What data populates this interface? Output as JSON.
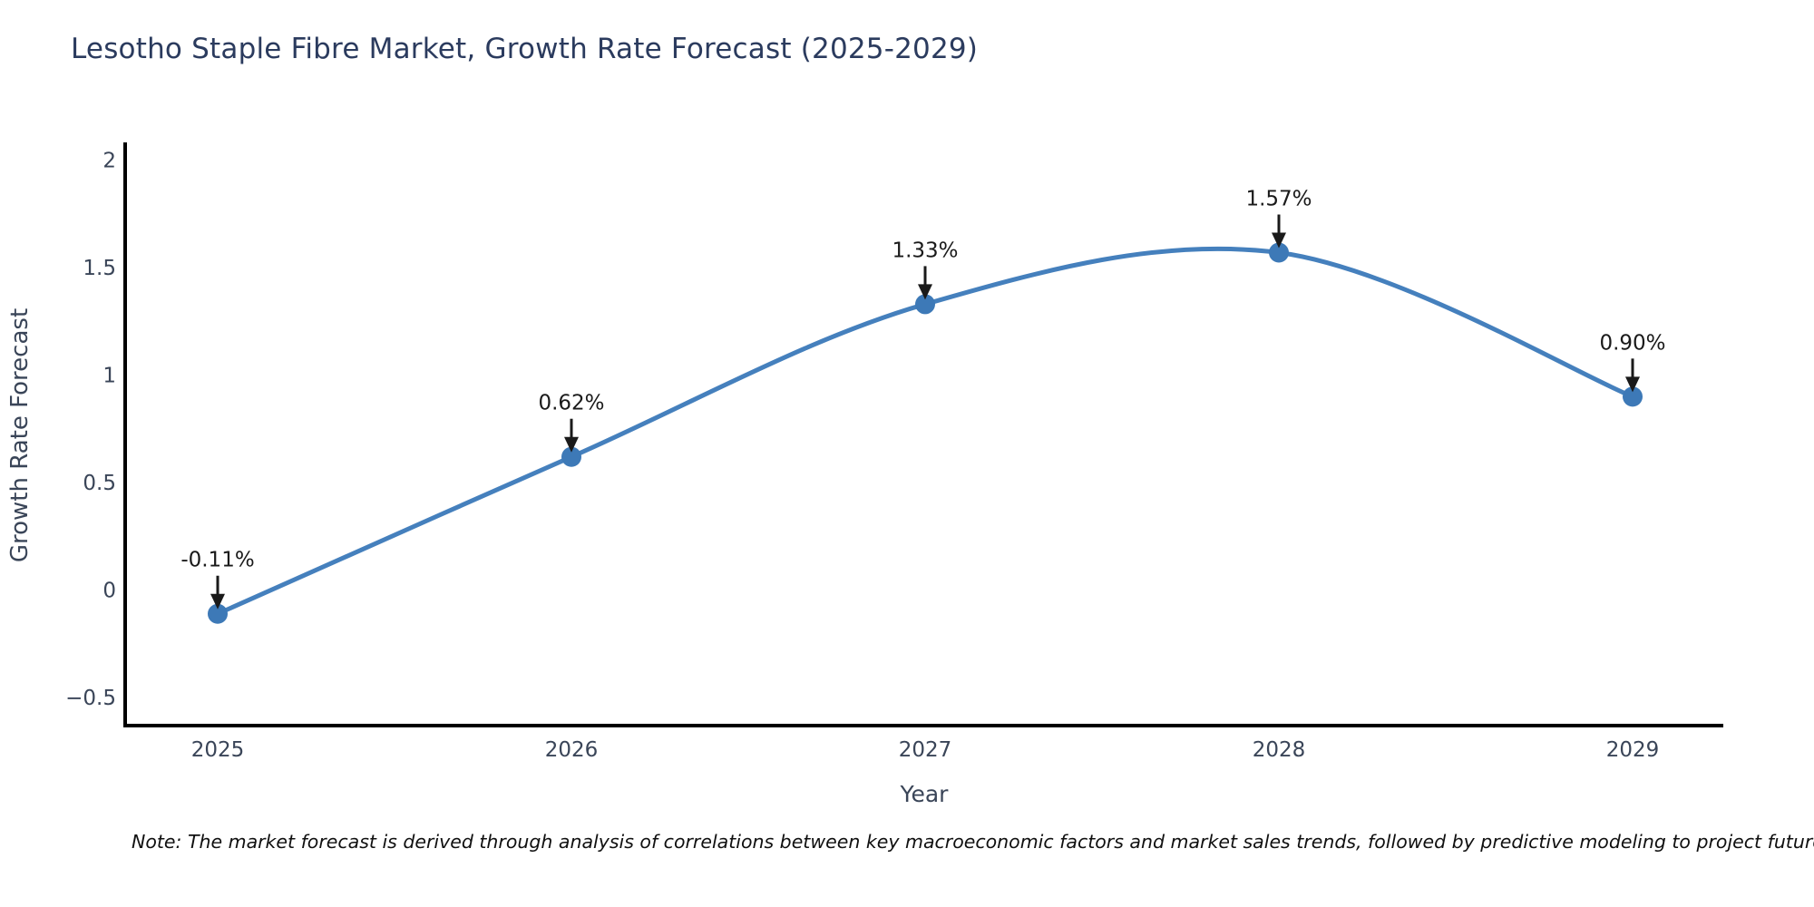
{
  "chart": {
    "title": "Lesotho Staple Fibre Market, Growth Rate Forecast (2025-2029)"
  },
  "chart_data": {
    "type": "line",
    "title": "Lesotho Staple Fibre Market, Growth Rate Forecast (2025-2029)",
    "xlabel": "Year",
    "ylabel": "Growth Rate Forecast",
    "x": [
      2025,
      2026,
      2027,
      2028,
      2029
    ],
    "values": [
      -0.11,
      0.62,
      1.33,
      1.57,
      0.9
    ],
    "point_labels": [
      "-0.11%",
      "0.62%",
      "1.33%",
      "1.57%",
      "0.90%"
    ],
    "xtick_labels": [
      "2025",
      "2026",
      "2027",
      "2028",
      "2029"
    ],
    "yticks": [
      2,
      1.5,
      1,
      0.5,
      0,
      -0.5
    ],
    "ytick_labels": [
      "2",
      "1.5",
      "1",
      "0.5",
      "0",
      "−0.5"
    ],
    "ylim": [
      -0.63,
      2.07
    ],
    "grid": false,
    "legend_position": "none",
    "curve": "spline",
    "line_color": "#4580bd",
    "marker_color": "#3d79b7"
  },
  "note": "Note: The market forecast is derived through analysis of correlations between key macroeconomic factors and market sales trends, followed by predictive modeling to project future sales",
  "colors": {
    "title": "#2b3b5e",
    "tick": "#3a4558",
    "axis_label": "#3a4558",
    "axis_line": "#000000",
    "annotation": "#1a1a1a",
    "background": "#ffffff"
  }
}
